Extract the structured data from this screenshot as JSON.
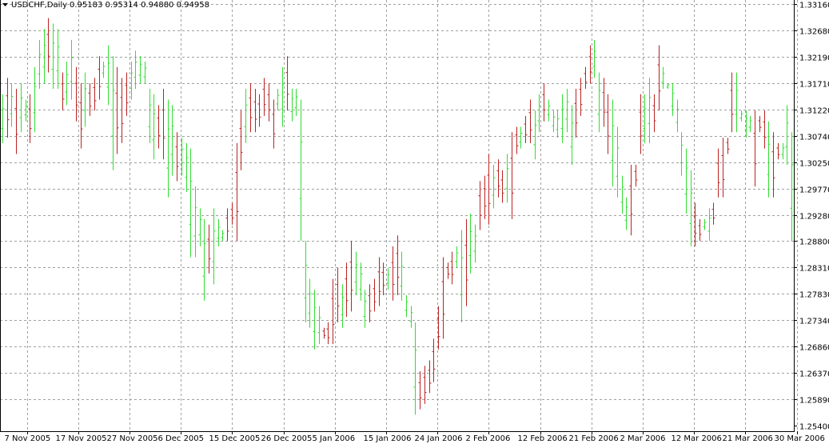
{
  "header": {
    "symbol": "USDCHF,Daily",
    "quote": "0.95183 0.95314 0.94880 0.94958"
  },
  "chart_data": {
    "type": "ohlc",
    "title": "USDCHF,Daily",
    "ylim": [
      1.254,
      1.3316
    ],
    "y_ticks": [
      "1.33160",
      "1.32680",
      "1.32190",
      "1.31710",
      "1.31220",
      "1.30740",
      "1.30250",
      "1.29770",
      "1.29280",
      "1.28800",
      "1.28310",
      "1.27830",
      "1.27340",
      "1.26860",
      "1.26370",
      "1.25890",
      "1.25400"
    ],
    "x_ticks": [
      "7 Nov 2005",
      "17 Nov 2005",
      "27 Nov 2005",
      "6 Dec 2005",
      "15 Dec 2005",
      "26 Dec 2005",
      "5 Jan 2006",
      "15 Jan 2006",
      "24 Jan 2006",
      "2 Feb 2006",
      "12 Feb 2006",
      "21 Feb 2006",
      "2 Mar 2006",
      "12 Mar 2006",
      "21 Mar 2006",
      "30 Mar 2006"
    ],
    "grid": true,
    "colors": {
      "up": "#33dd33",
      "down": "#bb2222",
      "grid": "#a0a0a0",
      "axis": "#000000",
      "background": "#ffffff"
    },
    "bars": [
      {
        "high": 1.315,
        "low": 1.306,
        "dir": "up"
      },
      {
        "high": 1.318,
        "low": 1.307,
        "dir": "down"
      },
      {
        "high": 1.317,
        "low": 1.309,
        "dir": "up"
      },
      {
        "high": 1.316,
        "low": 1.304,
        "dir": "down"
      },
      {
        "high": 1.317,
        "low": 1.308,
        "dir": "up"
      },
      {
        "high": 1.314,
        "low": 1.31,
        "dir": "up"
      },
      {
        "high": 1.315,
        "low": 1.306,
        "dir": "down"
      },
      {
        "high": 1.32,
        "low": 1.308,
        "dir": "up"
      },
      {
        "high": 1.325,
        "low": 1.316,
        "dir": "up"
      },
      {
        "high": 1.327,
        "low": 1.317,
        "dir": "up"
      },
      {
        "high": 1.329,
        "low": 1.319,
        "dir": "down"
      },
      {
        "high": 1.328,
        "low": 1.316,
        "dir": "up"
      },
      {
        "high": 1.327,
        "low": 1.316,
        "dir": "up"
      },
      {
        "high": 1.319,
        "low": 1.312,
        "dir": "down"
      },
      {
        "high": 1.321,
        "low": 1.313,
        "dir": "up"
      },
      {
        "high": 1.325,
        "low": 1.314,
        "dir": "up"
      },
      {
        "high": 1.32,
        "low": 1.31,
        "dir": "down"
      },
      {
        "high": 1.317,
        "low": 1.305,
        "dir": "down"
      },
      {
        "high": 1.319,
        "low": 1.309,
        "dir": "up"
      },
      {
        "high": 1.317,
        "low": 1.311,
        "dir": "down"
      },
      {
        "high": 1.318,
        "low": 1.312,
        "dir": "down"
      },
      {
        "high": 1.322,
        "low": 1.314,
        "dir": "down"
      },
      {
        "high": 1.321,
        "low": 1.318,
        "dir": "up"
      },
      {
        "high": 1.324,
        "low": 1.313,
        "dir": "up"
      },
      {
        "high": 1.322,
        "low": 1.301,
        "dir": "up"
      },
      {
        "high": 1.32,
        "low": 1.304,
        "dir": "down"
      },
      {
        "high": 1.318,
        "low": 1.306,
        "dir": "down"
      },
      {
        "high": 1.319,
        "low": 1.311,
        "dir": "down"
      },
      {
        "high": 1.321,
        "low": 1.314,
        "dir": "up"
      },
      {
        "high": 1.323,
        "low": 1.316,
        "dir": "up"
      },
      {
        "high": 1.322,
        "low": 1.317,
        "dir": "up"
      },
      {
        "high": 1.321,
        "low": 1.317,
        "dir": "up"
      },
      {
        "high": 1.316,
        "low": 1.306,
        "dir": "up"
      },
      {
        "high": 1.315,
        "low": 1.303,
        "dir": "up"
      },
      {
        "high": 1.313,
        "low": 1.305,
        "dir": "down"
      },
      {
        "high": 1.316,
        "low": 1.303,
        "dir": "down"
      },
      {
        "high": 1.314,
        "low": 1.296,
        "dir": "up"
      },
      {
        "high": 1.313,
        "low": 1.3,
        "dir": "up"
      },
      {
        "high": 1.308,
        "low": 1.299,
        "dir": "down"
      },
      {
        "high": 1.307,
        "low": 1.3,
        "dir": "up"
      },
      {
        "high": 1.306,
        "low": 1.297,
        "dir": "up"
      },
      {
        "high": 1.305,
        "low": 1.285,
        "dir": "up"
      },
      {
        "high": 1.298,
        "low": 1.285,
        "dir": "up"
      },
      {
        "high": 1.294,
        "low": 1.287,
        "dir": "up"
      },
      {
        "high": 1.292,
        "low": 1.277,
        "dir": "up"
      },
      {
        "high": 1.291,
        "low": 1.282,
        "dir": "down"
      },
      {
        "high": 1.294,
        "low": 1.28,
        "dir": "up"
      },
      {
        "high": 1.292,
        "low": 1.287,
        "dir": "up"
      },
      {
        "high": 1.29,
        "low": 1.288,
        "dir": "up"
      },
      {
        "high": 1.294,
        "low": 1.288,
        "dir": "down"
      },
      {
        "high": 1.295,
        "low": 1.291,
        "dir": "down"
      },
      {
        "high": 1.306,
        "low": 1.288,
        "dir": "down"
      },
      {
        "high": 1.312,
        "low": 1.301,
        "dir": "down"
      },
      {
        "high": 1.316,
        "low": 1.306,
        "dir": "up"
      },
      {
        "high": 1.317,
        "low": 1.308,
        "dir": "down"
      },
      {
        "high": 1.316,
        "low": 1.308,
        "dir": "down"
      },
      {
        "high": 1.315,
        "low": 1.309,
        "dir": "down"
      },
      {
        "high": 1.318,
        "low": 1.311,
        "dir": "down"
      },
      {
        "high": 1.317,
        "low": 1.31,
        "dir": "down"
      },
      {
        "high": 1.314,
        "low": 1.305,
        "dir": "down"
      },
      {
        "high": 1.316,
        "low": 1.312,
        "dir": "up"
      },
      {
        "high": 1.32,
        "low": 1.309,
        "dir": "up"
      },
      {
        "high": 1.322,
        "low": 1.312,
        "dir": "down"
      },
      {
        "high": 1.316,
        "low": 1.31,
        "dir": "up"
      },
      {
        "high": 1.316,
        "low": 1.311,
        "dir": "up"
      },
      {
        "high": 1.314,
        "low": 1.288,
        "dir": "up"
      },
      {
        "high": 1.288,
        "low": 1.273,
        "dir": "up"
      },
      {
        "high": 1.281,
        "low": 1.272,
        "dir": "up"
      },
      {
        "high": 1.279,
        "low": 1.268,
        "dir": "up"
      },
      {
        "high": 1.276,
        "low": 1.269,
        "dir": "up"
      },
      {
        "high": 1.272,
        "low": 1.27,
        "dir": "down"
      },
      {
        "high": 1.273,
        "low": 1.269,
        "dir": "down"
      },
      {
        "high": 1.281,
        "low": 1.269,
        "dir": "down"
      },
      {
        "high": 1.283,
        "low": 1.273,
        "dir": "down"
      },
      {
        "high": 1.28,
        "low": 1.272,
        "dir": "up"
      },
      {
        "high": 1.284,
        "low": 1.274,
        "dir": "down"
      },
      {
        "high": 1.288,
        "low": 1.275,
        "dir": "down"
      },
      {
        "high": 1.286,
        "low": 1.278,
        "dir": "up"
      },
      {
        "high": 1.284,
        "low": 1.277,
        "dir": "up"
      },
      {
        "high": 1.279,
        "low": 1.272,
        "dir": "up"
      },
      {
        "high": 1.28,
        "low": 1.273,
        "dir": "down"
      },
      {
        "high": 1.281,
        "low": 1.275,
        "dir": "down"
      },
      {
        "high": 1.285,
        "low": 1.276,
        "dir": "down"
      },
      {
        "high": 1.284,
        "low": 1.278,
        "dir": "down"
      },
      {
        "high": 1.283,
        "low": 1.279,
        "dir": "up"
      },
      {
        "high": 1.287,
        "low": 1.277,
        "dir": "down"
      },
      {
        "high": 1.289,
        "low": 1.278,
        "dir": "down"
      },
      {
        "high": 1.286,
        "low": 1.277,
        "dir": "up"
      },
      {
        "high": 1.278,
        "low": 1.274,
        "dir": "up"
      },
      {
        "high": 1.276,
        "low": 1.272,
        "dir": "up"
      },
      {
        "high": 1.273,
        "low": 1.256,
        "dir": "up"
      },
      {
        "high": 1.264,
        "low": 1.257,
        "dir": "down"
      },
      {
        "high": 1.265,
        "low": 1.258,
        "dir": "down"
      },
      {
        "high": 1.266,
        "low": 1.26,
        "dir": "down"
      },
      {
        "high": 1.27,
        "low": 1.262,
        "dir": "down"
      },
      {
        "high": 1.276,
        "low": 1.268,
        "dir": "down"
      },
      {
        "high": 1.285,
        "low": 1.27,
        "dir": "down"
      },
      {
        "high": 1.284,
        "low": 1.281,
        "dir": "down"
      },
      {
        "high": 1.286,
        "low": 1.28,
        "dir": "down"
      },
      {
        "high": 1.287,
        "low": 1.283,
        "dir": "up"
      },
      {
        "high": 1.29,
        "low": 1.273,
        "dir": "up"
      },
      {
        "high": 1.292,
        "low": 1.276,
        "dir": "down"
      },
      {
        "high": 1.293,
        "low": 1.282,
        "dir": "up"
      },
      {
        "high": 1.291,
        "low": 1.284,
        "dir": "up"
      },
      {
        "high": 1.299,
        "low": 1.29,
        "dir": "down"
      },
      {
        "high": 1.3,
        "low": 1.292,
        "dir": "down"
      },
      {
        "high": 1.304,
        "low": 1.291,
        "dir": "down"
      },
      {
        "high": 1.302,
        "low": 1.294,
        "dir": "up"
      },
      {
        "high": 1.303,
        "low": 1.296,
        "dir": "down"
      },
      {
        "high": 1.301,
        "low": 1.295,
        "dir": "down"
      },
      {
        "high": 1.304,
        "low": 1.295,
        "dir": "up"
      },
      {
        "high": 1.308,
        "low": 1.292,
        "dir": "down"
      },
      {
        "high": 1.309,
        "low": 1.304,
        "dir": "down"
      },
      {
        "high": 1.309,
        "low": 1.305,
        "dir": "up"
      },
      {
        "high": 1.311,
        "low": 1.306,
        "dir": "down"
      },
      {
        "high": 1.314,
        "low": 1.306,
        "dir": "down"
      },
      {
        "high": 1.312,
        "low": 1.303,
        "dir": "up"
      },
      {
        "high": 1.315,
        "low": 1.308,
        "dir": "up"
      },
      {
        "high": 1.317,
        "low": 1.31,
        "dir": "down"
      },
      {
        "high": 1.314,
        "low": 1.31,
        "dir": "up"
      },
      {
        "high": 1.312,
        "low": 1.308,
        "dir": "up"
      },
      {
        "high": 1.312,
        "low": 1.307,
        "dir": "up"
      },
      {
        "high": 1.315,
        "low": 1.306,
        "dir": "up"
      },
      {
        "high": 1.316,
        "low": 1.308,
        "dir": "up"
      },
      {
        "high": 1.313,
        "low": 1.302,
        "dir": "up"
      },
      {
        "high": 1.316,
        "low": 1.307,
        "dir": "down"
      },
      {
        "high": 1.318,
        "low": 1.311,
        "dir": "down"
      },
      {
        "high": 1.32,
        "low": 1.316,
        "dir": "down"
      },
      {
        "high": 1.324,
        "low": 1.317,
        "dir": "down"
      },
      {
        "high": 1.325,
        "low": 1.318,
        "dir": "up"
      },
      {
        "high": 1.319,
        "low": 1.308,
        "dir": "up"
      },
      {
        "high": 1.318,
        "low": 1.309,
        "dir": "down"
      },
      {
        "high": 1.315,
        "low": 1.304,
        "dir": "down"
      },
      {
        "high": 1.314,
        "low": 1.298,
        "dir": "up"
      },
      {
        "high": 1.309,
        "low": 1.296,
        "dir": "up"
      },
      {
        "high": 1.3,
        "low": 1.293,
        "dir": "up"
      },
      {
        "high": 1.296,
        "low": 1.29,
        "dir": "up"
      },
      {
        "high": 1.302,
        "low": 1.289,
        "dir": "down"
      },
      {
        "high": 1.302,
        "low": 1.298,
        "dir": "down"
      },
      {
        "high": 1.315,
        "low": 1.304,
        "dir": "down"
      },
      {
        "high": 1.315,
        "low": 1.306,
        "dir": "up"
      },
      {
        "high": 1.318,
        "low": 1.306,
        "dir": "up"
      },
      {
        "high": 1.315,
        "low": 1.308,
        "dir": "down"
      },
      {
        "high": 1.324,
        "low": 1.312,
        "dir": "down"
      },
      {
        "high": 1.32,
        "low": 1.316,
        "dir": "up"
      },
      {
        "high": 1.317,
        "low": 1.316,
        "dir": "up"
      },
      {
        "high": 1.317,
        "low": 1.311,
        "dir": "up"
      },
      {
        "high": 1.314,
        "low": 1.308,
        "dir": "up"
      },
      {
        "high": 1.308,
        "low": 1.3,
        "dir": "up"
      },
      {
        "high": 1.305,
        "low": 1.293,
        "dir": "up"
      },
      {
        "high": 1.301,
        "low": 1.287,
        "dir": "up"
      },
      {
        "high": 1.295,
        "low": 1.287,
        "dir": "down"
      },
      {
        "high": 1.292,
        "low": 1.288,
        "dir": "down"
      },
      {
        "high": 1.292,
        "low": 1.29,
        "dir": "up"
      },
      {
        "high": 1.294,
        "low": 1.288,
        "dir": "up"
      },
      {
        "high": 1.295,
        "low": 1.291,
        "dir": "down"
      },
      {
        "high": 1.305,
        "low": 1.296,
        "dir": "down"
      },
      {
        "high": 1.307,
        "low": 1.296,
        "dir": "down"
      },
      {
        "high": 1.307,
        "low": 1.304,
        "dir": "down"
      },
      {
        "high": 1.319,
        "low": 1.308,
        "dir": "down"
      },
      {
        "high": 1.319,
        "low": 1.308,
        "dir": "up"
      },
      {
        "high": 1.312,
        "low": 1.31,
        "dir": "up"
      },
      {
        "high": 1.312,
        "low": 1.307,
        "dir": "up"
      },
      {
        "high": 1.311,
        "low": 1.308,
        "dir": "up"
      },
      {
        "high": 1.312,
        "low": 1.298,
        "dir": "down"
      },
      {
        "high": 1.311,
        "low": 1.308,
        "dir": "down"
      },
      {
        "high": 1.312,
        "low": 1.305,
        "dir": "down"
      },
      {
        "high": 1.31,
        "low": 1.296,
        "dir": "up"
      },
      {
        "high": 1.308,
        "low": 1.296,
        "dir": "down"
      },
      {
        "high": 1.306,
        "low": 1.303,
        "dir": "down"
      },
      {
        "high": 1.306,
        "low": 1.303,
        "dir": "up"
      },
      {
        "high": 1.313,
        "low": 1.302,
        "dir": "up"
      },
      {
        "high": 1.308,
        "low": 1.288,
        "dir": "up"
      }
    ]
  }
}
